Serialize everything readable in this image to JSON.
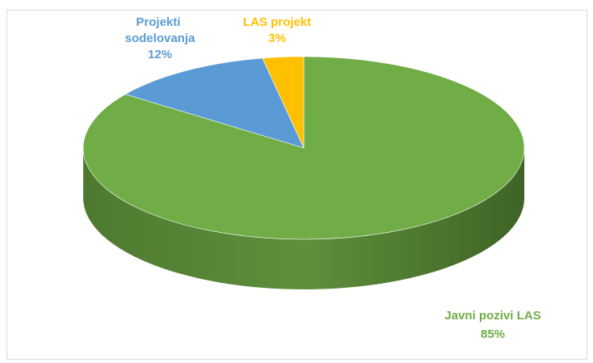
{
  "chart_data": {
    "type": "pie",
    "categories": [
      "Javni pozivi LAS",
      "Projekti sodelovanja",
      "LAS projekt"
    ],
    "values": [
      85,
      12,
      3
    ],
    "value_labels": [
      "85%",
      "12%",
      "3%"
    ],
    "colors": [
      "#70ad47",
      "#5b9bd5",
      "#ffc000"
    ]
  }
}
